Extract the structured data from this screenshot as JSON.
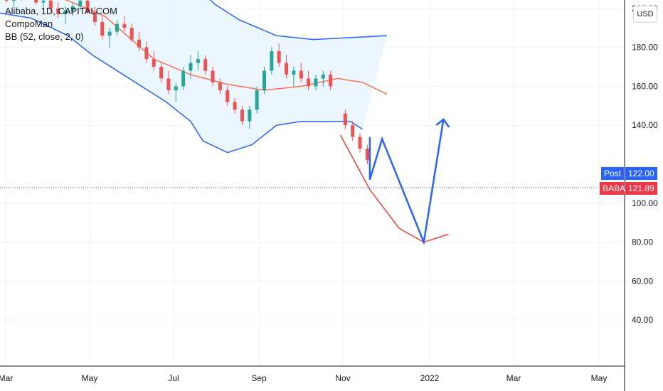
{
  "legend": {
    "symbol_line": "Alibaba, 1D, CAPITALCOM",
    "author": "CompoMan",
    "indicator": "BB (52, close, 2, 0)"
  },
  "currency_label": "USD",
  "price_tags": {
    "post": {
      "label": "Post",
      "value": "122.00",
      "color": "#2962ff"
    },
    "last": {
      "label": "BABA",
      "value": "121.89",
      "color": "#f23645"
    }
  },
  "colors": {
    "up_candle": "#26a69a",
    "down_candle": "#ef5350",
    "band_line": "#2962ff",
    "basis_line": "#ff6d4d",
    "band_fill": "#e3f2fd",
    "drawing": "#2962ff",
    "curve": "#f44336"
  },
  "chart_data": {
    "type": "candlestick",
    "y_axis": {
      "ticks": [
        "200.00",
        "180.00",
        "160.00",
        "140.00",
        "100.00",
        "80.00",
        "60.00",
        "40.00"
      ],
      "range": [
        35,
        218
      ]
    },
    "x_axis": {
      "ticks": [
        "Mar",
        "May",
        "Jul",
        "Sep",
        "Nov",
        "2022",
        "Mar",
        "May"
      ]
    },
    "last_price": 121.89,
    "post_price": 122.0,
    "bollinger": {
      "upper": [
        [
          0.0,
          235
        ],
        [
          0.3,
          232
        ],
        [
          0.5,
          226
        ],
        [
          0.65,
          222
        ],
        [
          0.8,
          214
        ],
        [
          0.9,
          202
        ],
        [
          1.0,
          194
        ],
        [
          1.15,
          186
        ],
        [
          1.3,
          184
        ],
        [
          1.45,
          185
        ],
        [
          1.6,
          186
        ]
      ],
      "basis": [
        [
          0.0,
          212
        ],
        [
          0.15,
          210
        ],
        [
          0.3,
          204
        ],
        [
          0.45,
          196
        ],
        [
          0.55,
          185
        ],
        [
          0.65,
          174
        ],
        [
          0.8,
          166
        ],
        [
          0.95,
          161
        ],
        [
          1.1,
          158
        ],
        [
          1.25,
          160
        ],
        [
          1.4,
          164
        ],
        [
          1.5,
          162
        ],
        [
          1.6,
          156
        ]
      ],
      "lower": [
        [
          0.0,
          198
        ],
        [
          0.15,
          195
        ],
        [
          0.3,
          186
        ],
        [
          0.4,
          176
        ],
        [
          0.55,
          164
        ],
        [
          0.7,
          152
        ],
        [
          0.8,
          142
        ],
        [
          0.85,
          132
        ],
        [
          0.95,
          126
        ],
        [
          1.05,
          130
        ],
        [
          1.15,
          140
        ],
        [
          1.25,
          142
        ],
        [
          1.35,
          142
        ],
        [
          1.45,
          142
        ],
        [
          1.5,
          138
        ]
      ]
    },
    "candles": [
      [
        0.02,
        205,
        210,
        200,
        207
      ],
      [
        0.05,
        207,
        209,
        203,
        204
      ],
      [
        0.08,
        204,
        208,
        201,
        206
      ],
      [
        0.11,
        206,
        212,
        204,
        210
      ],
      [
        0.14,
        210,
        212,
        205,
        206
      ],
      [
        0.17,
        206,
        209,
        202,
        203
      ],
      [
        0.2,
        203,
        206,
        199,
        204
      ],
      [
        0.23,
        204,
        207,
        198,
        200
      ],
      [
        0.26,
        200,
        203,
        195,
        197
      ],
      [
        0.29,
        197,
        201,
        192,
        199
      ],
      [
        0.32,
        199,
        203,
        196,
        201
      ],
      [
        0.35,
        201,
        206,
        199,
        204
      ],
      [
        0.38,
        204,
        206,
        197,
        198
      ],
      [
        0.41,
        198,
        201,
        191,
        193
      ],
      [
        0.44,
        193,
        196,
        184,
        186
      ],
      [
        0.47,
        186,
        190,
        180,
        188
      ],
      [
        0.5,
        188,
        194,
        186,
        192
      ],
      [
        0.53,
        192,
        196,
        188,
        190
      ],
      [
        0.56,
        190,
        192,
        183,
        184
      ],
      [
        0.59,
        184,
        188,
        178,
        180
      ],
      [
        0.62,
        180,
        183,
        172,
        174
      ],
      [
        0.65,
        174,
        178,
        168,
        170
      ],
      [
        0.68,
        170,
        172,
        162,
        164
      ],
      [
        0.71,
        164,
        168,
        156,
        158
      ],
      [
        0.74,
        158,
        162,
        152,
        160
      ],
      [
        0.77,
        160,
        170,
        158,
        168
      ],
      [
        0.8,
        168,
        176,
        164,
        172
      ],
      [
        0.83,
        172,
        178,
        168,
        174
      ],
      [
        0.86,
        174,
        176,
        166,
        168
      ],
      [
        0.89,
        168,
        170,
        160,
        162
      ],
      [
        0.92,
        162,
        164,
        156,
        158
      ],
      [
        0.95,
        158,
        160,
        150,
        152
      ],
      [
        0.98,
        152,
        154,
        146,
        148
      ],
      [
        1.01,
        148,
        150,
        140,
        142
      ],
      [
        1.04,
        142,
        150,
        138,
        148
      ],
      [
        1.07,
        148,
        160,
        146,
        158
      ],
      [
        1.1,
        158,
        170,
        156,
        168
      ],
      [
        1.13,
        168,
        180,
        166,
        178
      ],
      [
        1.16,
        178,
        182,
        170,
        172
      ],
      [
        1.19,
        172,
        176,
        164,
        166
      ],
      [
        1.22,
        166,
        170,
        160,
        168
      ],
      [
        1.25,
        168,
        172,
        162,
        164
      ],
      [
        1.28,
        164,
        168,
        158,
        160
      ],
      [
        1.31,
        160,
        166,
        158,
        164
      ],
      [
        1.34,
        164,
        168,
        160,
        166
      ],
      [
        1.37,
        166,
        168,
        158,
        160
      ],
      [
        1.43,
        146,
        148,
        138,
        140
      ],
      [
        1.46,
        140,
        142,
        132,
        134
      ],
      [
        1.49,
        134,
        136,
        126,
        128
      ],
      [
        1.52,
        128,
        130,
        120,
        122
      ]
    ],
    "projection_path": [
      [
        1.53,
        112
      ],
      [
        1.58,
        133
      ],
      [
        1.75,
        80
      ],
      [
        1.83,
        143
      ]
    ],
    "projection_curve": [
      [
        1.41,
        135
      ],
      [
        1.53,
        107
      ],
      [
        1.65,
        87
      ],
      [
        1.75,
        80
      ],
      [
        1.85,
        84
      ]
    ]
  }
}
